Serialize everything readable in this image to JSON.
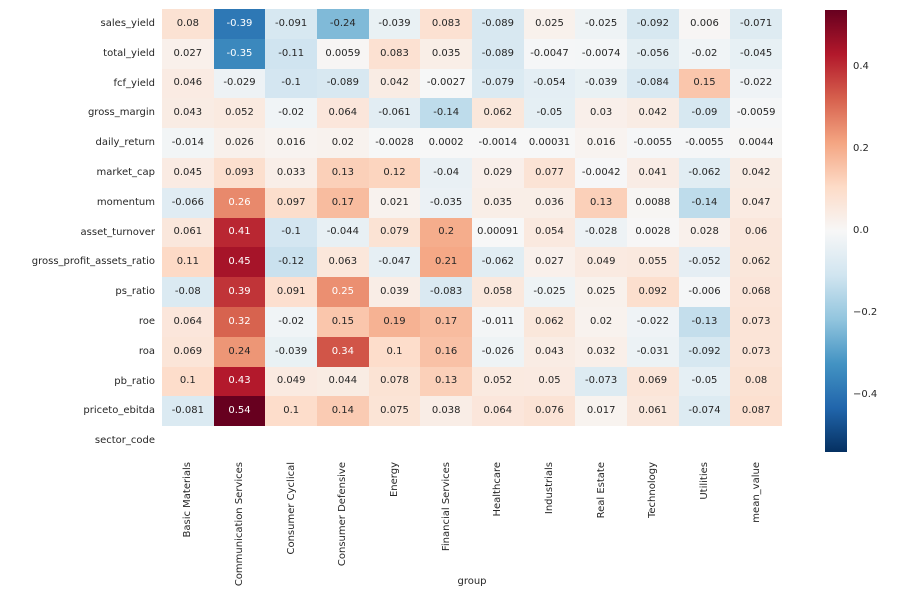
{
  "chart_data": {
    "type": "heatmap",
    "title": "",
    "xlabel": "group",
    "ylabel": "",
    "x_categories": [
      "Basic Materials",
      "Communication Services",
      "Consumer Cyclical",
      "Consumer Defensive",
      "Energy",
      "Financial Services",
      "Healthcare",
      "Industrials",
      "Real Estate",
      "Technology",
      "Utilities",
      "mean_value"
    ],
    "y_categories": [
      "sales_yield",
      "total_yield",
      "fcf_yield",
      "gross_margin",
      "daily_return",
      "market_cap",
      "momentum",
      "asset_turnover",
      "gross_profit_assets_ratio",
      "ps_ratio",
      "roe",
      "roa",
      "pb_ratio",
      "priceto_ebitda",
      "sector_code"
    ],
    "values": [
      [
        "0.08",
        "-0.39",
        "-0.091",
        "-0.24",
        "-0.039",
        "0.083",
        "-0.089",
        "0.025",
        "-0.025",
        "-0.092",
        "0.006",
        "-0.071"
      ],
      [
        "0.027",
        "-0.35",
        "-0.11",
        "0.0059",
        "0.083",
        "0.035",
        "-0.089",
        "-0.0047",
        "-0.0074",
        "-0.056",
        "-0.02",
        "-0.045"
      ],
      [
        "0.046",
        "-0.029",
        "-0.1",
        "-0.089",
        "0.042",
        "-0.0027",
        "-0.079",
        "-0.054",
        "-0.039",
        "-0.084",
        "0.15",
        "-0.022"
      ],
      [
        "0.043",
        "0.052",
        "-0.02",
        "0.064",
        "-0.061",
        "-0.14",
        "0.062",
        "-0.05",
        "0.03",
        "0.042",
        "-0.09",
        "-0.0059"
      ],
      [
        "-0.014",
        "0.026",
        "0.016",
        "0.02",
        "-0.0028",
        "0.0002",
        "-0.0014",
        "0.00031",
        "0.016",
        "-0.0055",
        "-0.0055",
        "0.0044"
      ],
      [
        "0.045",
        "0.093",
        "0.033",
        "0.13",
        "0.12",
        "-0.04",
        "0.029",
        "0.077",
        "-0.0042",
        "0.041",
        "-0.062",
        "0.042"
      ],
      [
        "-0.066",
        "0.26",
        "0.097",
        "0.17",
        "0.021",
        "-0.035",
        "0.035",
        "0.036",
        "0.13",
        "0.0088",
        "-0.14",
        "0.047"
      ],
      [
        "0.061",
        "0.41",
        "-0.1",
        "-0.044",
        "0.079",
        "0.2",
        "0.00091",
        "0.054",
        "-0.028",
        "0.0028",
        "0.028",
        "0.06"
      ],
      [
        "0.11",
        "0.45",
        "-0.12",
        "0.063",
        "-0.047",
        "0.21",
        "-0.062",
        "0.027",
        "0.049",
        "0.055",
        "-0.052",
        "0.062"
      ],
      [
        "-0.08",
        "0.39",
        "0.091",
        "0.25",
        "0.039",
        "-0.083",
        "0.058",
        "-0.025",
        "0.025",
        "0.092",
        "-0.006",
        "0.068"
      ],
      [
        "0.064",
        "0.32",
        "-0.02",
        "0.15",
        "0.19",
        "0.17",
        "-0.011",
        "0.062",
        "0.02",
        "-0.022",
        "-0.13",
        "0.073"
      ],
      [
        "0.069",
        "0.24",
        "-0.039",
        "0.34",
        "0.1",
        "0.16",
        "-0.026",
        "0.043",
        "0.032",
        "-0.031",
        "-0.092",
        "0.073"
      ],
      [
        "0.1",
        "0.43",
        "0.049",
        "0.044",
        "0.078",
        "0.13",
        "0.052",
        "0.05",
        "-0.073",
        "0.069",
        "-0.05",
        "0.08"
      ],
      [
        "-0.081",
        "0.54",
        "0.1",
        "0.14",
        "0.075",
        "0.038",
        "0.064",
        "0.076",
        "0.017",
        "0.061",
        "-0.074",
        "0.087"
      ],
      [
        "",
        "",
        "",
        "",
        "",
        "",
        "",
        "",
        "",
        "",
        "",
        ""
      ]
    ],
    "vmin": -0.54,
    "vmax": 0.54,
    "colormap": "RdBu_r",
    "colormap_stops": [
      [
        0.0,
        "#053061"
      ],
      [
        0.1,
        "#2166ac"
      ],
      [
        0.2,
        "#4393c3"
      ],
      [
        0.3,
        "#92c5de"
      ],
      [
        0.4,
        "#d1e5f0"
      ],
      [
        0.5,
        "#f7f7f7"
      ],
      [
        0.6,
        "#fddbc7"
      ],
      [
        0.7,
        "#f4a582"
      ],
      [
        0.8,
        "#d6604d"
      ],
      [
        0.9,
        "#b2182b"
      ],
      [
        1.0,
        "#67001f"
      ]
    ],
    "colorbar_ticks": [
      {
        "label": "0.4",
        "value": 0.4
      },
      {
        "label": "0.2",
        "value": 0.2
      },
      {
        "label": "0.0",
        "value": 0.0
      },
      {
        "label": "−0.2",
        "value": -0.2
      },
      {
        "label": "−0.4",
        "value": -0.4
      }
    ],
    "legend_position": "right",
    "grid": false,
    "annotation_colors": {
      "dark": "#262626",
      "light": "#ffffff"
    },
    "background": "#ffffff",
    "empty_cell_color": "#ffffff"
  }
}
